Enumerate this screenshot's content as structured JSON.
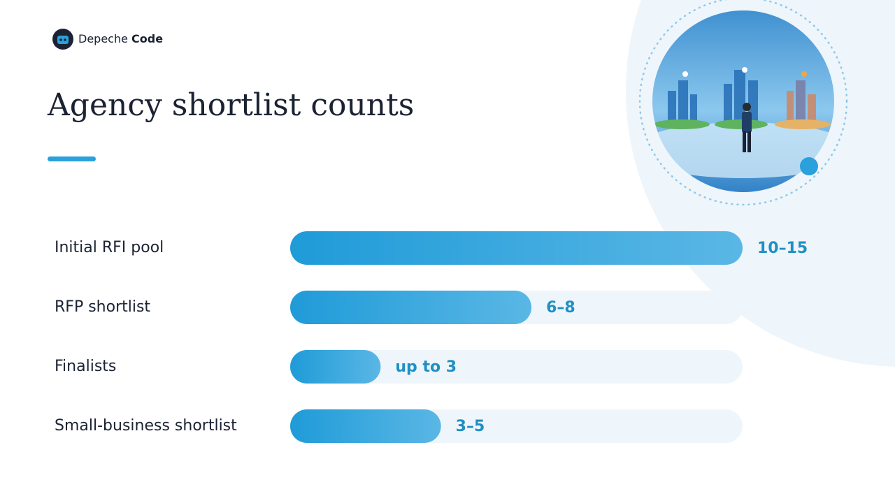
{
  "brand": {
    "name": "Depeche",
    "emphasis": "Code"
  },
  "chart_data": {
    "type": "bar",
    "orientation": "horizontal",
    "title": "Agency shortlist counts",
    "categories": [
      "Initial RFI pool",
      "RFP shortlist",
      "Finalists",
      "Small-business shortlist"
    ],
    "values": [
      15,
      8,
      3,
      5
    ],
    "value_labels": [
      "10–15",
      "6–8",
      "up to 3",
      "3–5"
    ],
    "color": "#2aa0dc"
  }
}
